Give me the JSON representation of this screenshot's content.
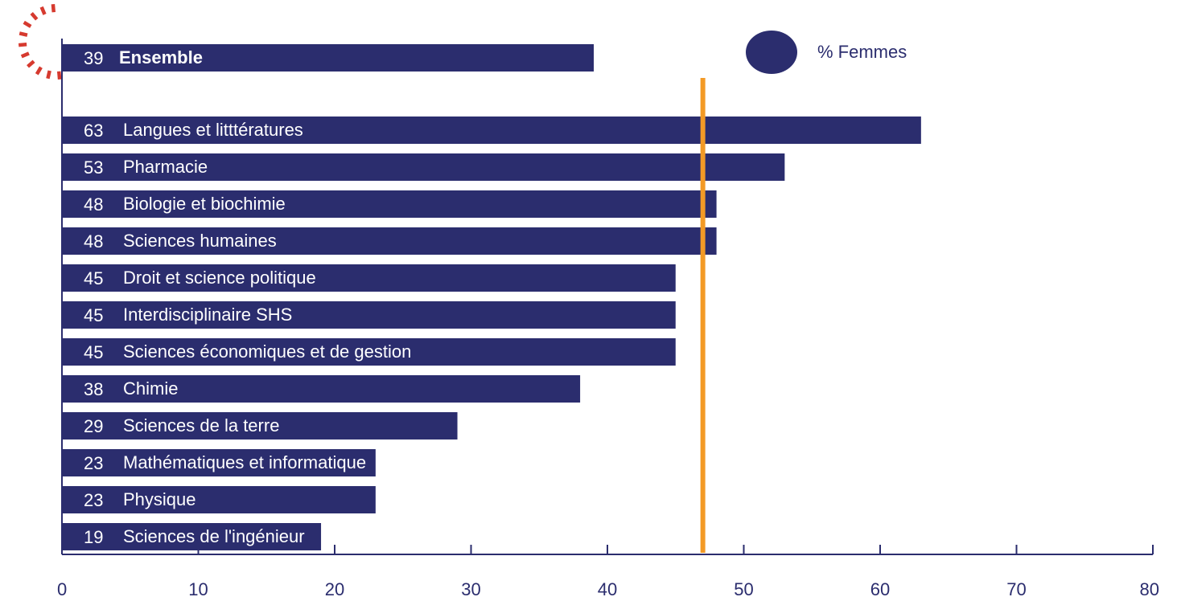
{
  "chart_data": {
    "type": "bar",
    "orientation": "horizontal",
    "categories": [
      "Ensemble",
      "Langues et litttératures",
      "Pharmacie",
      "Biologie et biochimie",
      "Sciences humaines",
      "Droit et science politique",
      "Interdisciplinaire SHS",
      "Sciences économiques et de gestion",
      "Chimie",
      "Sciences de la terre",
      "Mathématiques et informatique",
      "Physique",
      "Sciences de l'ingénieur"
    ],
    "values": [
      39,
      63,
      53,
      48,
      48,
      45,
      45,
      45,
      38,
      29,
      23,
      23,
      19
    ],
    "value_labels": [
      "39",
      "63",
      "53",
      "48",
      "48",
      "45",
      "45",
      "45",
      "38",
      "29",
      "23",
      "23",
      "19"
    ],
    "highlighted_category": "Ensemble",
    "legend": [
      "% Femmes"
    ],
    "reference_line": 47,
    "xlim": [
      0,
      80
    ],
    "xticks": [
      "0",
      "10",
      "20",
      "30",
      "40",
      "50",
      "60",
      "70",
      "80"
    ],
    "grid": false,
    "legend_position": "top-right"
  },
  "colors": {
    "bar": "#2b2d6e",
    "highlight_text": "#e8604c",
    "reference_line": "#f39a26",
    "axis": "#2b2d6e",
    "decoration": "#d63a2f"
  }
}
